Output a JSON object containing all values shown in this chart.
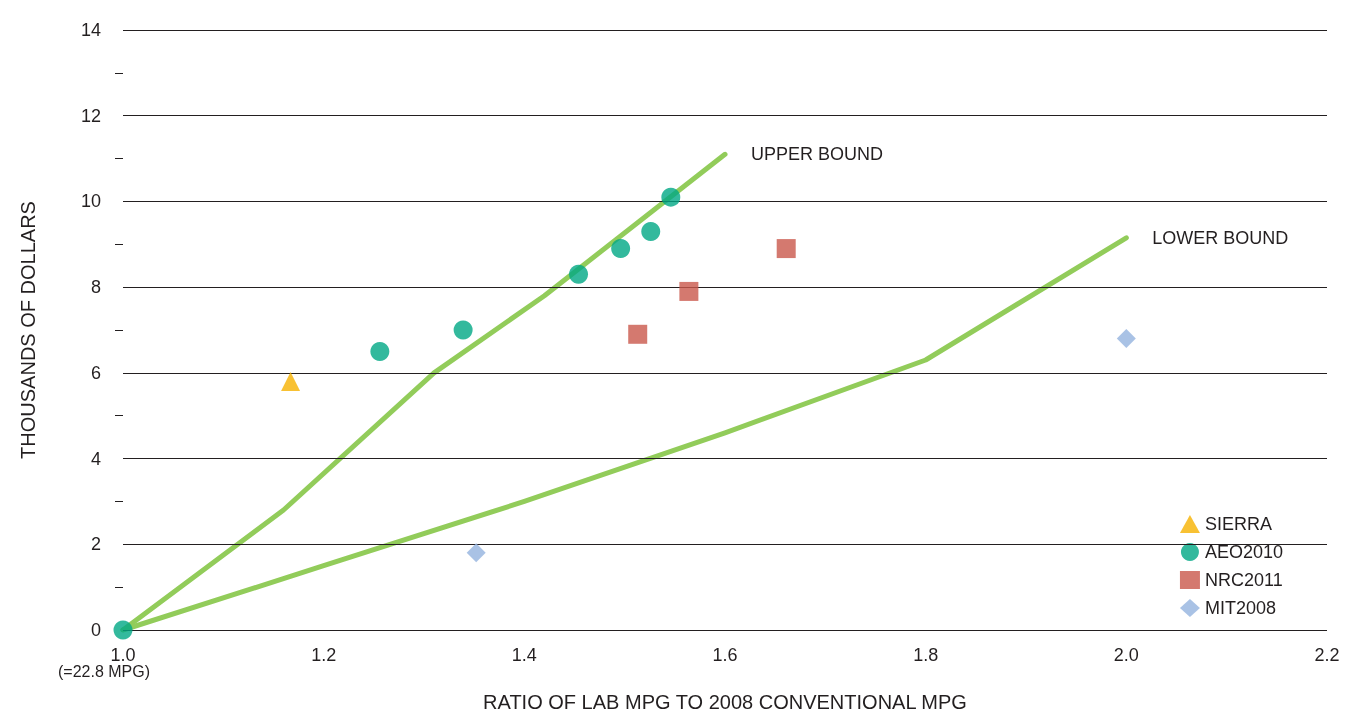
{
  "chart_data": {
    "type": "scatter",
    "xlabel": "RATIO OF LAB MPG TO 2008 CONVENTIONAL MPG",
    "ylabel": "THOUSANDS OF DOLLARS",
    "annotations": [
      "(=22.8 MPG)"
    ],
    "xlim": [
      1.0,
      2.2
    ],
    "xticks": [
      {
        "value": 1.0,
        "label": "1.0"
      },
      {
        "value": 1.2,
        "label": "1.2"
      },
      {
        "value": 1.4,
        "label": "1.4"
      },
      {
        "value": 1.6,
        "label": "1.6"
      },
      {
        "value": 1.8,
        "label": "1.8"
      },
      {
        "value": 2.0,
        "label": "2.0"
      },
      {
        "value": 2.2,
        "label": "2.2"
      }
    ],
    "ylim": [
      0,
      14
    ],
    "yticks": [
      0,
      {
        "value": 1,
        "label": null
      },
      2,
      {
        "value": 3,
        "label": null
      },
      4,
      {
        "value": 5,
        "label": null
      },
      6,
      {
        "value": 7,
        "label": null
      },
      8,
      {
        "value": 9,
        "label": null
      },
      10,
      {
        "value": 11,
        "label": null
      },
      12,
      {
        "value": 13,
        "label": null
      },
      14
    ],
    "grid": "y",
    "legend": "bottom right",
    "series": [
      {
        "name": "UPPER BOUND",
        "type": "line",
        "color": "#92cc5a",
        "marker": "none",
        "line_style": "solid",
        "x": [
          1.0,
          1.16,
          1.31,
          1.42,
          1.6
        ],
        "values": [
          0,
          2.8,
          6.0,
          7.8,
          11.1
        ]
      },
      {
        "name": "LOWER BOUND",
        "type": "line",
        "color": "#92cc5a",
        "marker": "none",
        "line_style": "solid",
        "x": [
          1.0,
          1.2,
          1.4,
          1.6,
          1.8,
          2.0
        ],
        "values": [
          0,
          1.5,
          3.0,
          4.6,
          6.3,
          9.15
        ]
      },
      {
        "name": "SIERRA",
        "color": "#f6b200",
        "marker": "triangle",
        "x": [
          1.167
        ],
        "values": [
          5.8
        ]
      },
      {
        "name": "AEO2010",
        "color": "#00a884",
        "marker": "circle",
        "x": [
          1.0,
          1.256,
          1.339,
          1.454,
          1.496,
          1.526,
          1.546
        ],
        "values": [
          0,
          6.5,
          7.0,
          8.3,
          8.9,
          9.3,
          10.1
        ]
      },
      {
        "name": "NRC2011",
        "color": "#c9584b",
        "marker": "square",
        "x": [
          1.513,
          1.564,
          1.661
        ],
        "values": [
          6.9,
          7.9,
          8.9
        ]
      },
      {
        "name": "MIT2008",
        "color": "#93b3df",
        "marker": "diamond",
        "x": [
          1.352,
          2.0
        ],
        "values": [
          1.8,
          6.8
        ]
      }
    ]
  }
}
